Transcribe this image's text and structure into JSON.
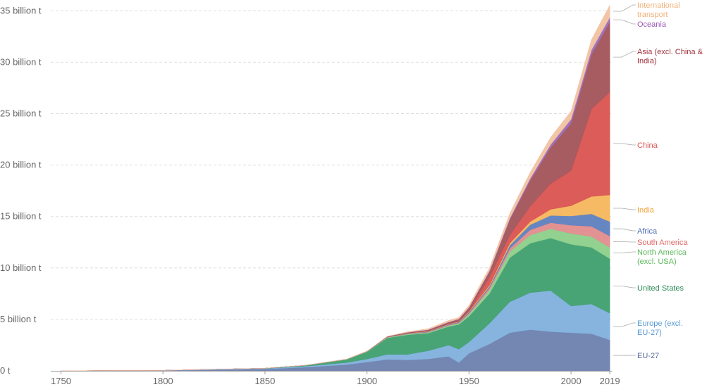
{
  "chart_data": {
    "type": "area",
    "stacked": true,
    "y_unit_suffix": " billion t",
    "x_ticks": [
      {
        "value": 1750,
        "label": "1750"
      },
      {
        "value": 1800,
        "label": "1800"
      },
      {
        "value": 1850,
        "label": "1850"
      },
      {
        "value": 1900,
        "label": "1900"
      },
      {
        "value": 1950,
        "label": "1950"
      },
      {
        "value": 2000,
        "label": "2000"
      },
      {
        "value": 2019,
        "label": "2019"
      }
    ],
    "y_ticks": [
      {
        "value": 0,
        "label": "0 t"
      },
      {
        "value": 5,
        "label": "5 billion t"
      },
      {
        "value": 10,
        "label": "10 billion t"
      },
      {
        "value": 15,
        "label": "15 billion t"
      },
      {
        "value": 20,
        "label": "20 billion t"
      },
      {
        "value": 25,
        "label": "25 billion t"
      },
      {
        "value": 30,
        "label": "30 billion t"
      },
      {
        "value": 35,
        "label": "35 billion t"
      }
    ],
    "xlim": [
      1745,
      2020
    ],
    "ylim": [
      0,
      35.5
    ],
    "grid": "horizontal dashed",
    "legend_placement": "right, labels at end of series",
    "x": [
      1750,
      1800,
      1850,
      1870,
      1890,
      1900,
      1910,
      1920,
      1930,
      1940,
      1945,
      1950,
      1960,
      1970,
      1980,
      1990,
      2000,
      2010,
      2019
    ],
    "series": [
      {
        "name": "EU-27",
        "color": "#6d7fae",
        "values": [
          0.01,
          0.03,
          0.18,
          0.35,
          0.6,
          0.85,
          1.1,
          1.05,
          1.15,
          1.4,
          0.8,
          1.7,
          2.6,
          3.7,
          4.0,
          3.8,
          3.7,
          3.6,
          3.0
        ]
      },
      {
        "name": "Europe (excl. EU-27)",
        "color": "#7fb0dc",
        "values": [
          0.0,
          0.02,
          0.05,
          0.1,
          0.2,
          0.3,
          0.5,
          0.55,
          0.8,
          1.1,
          1.3,
          1.1,
          2.0,
          3.0,
          3.6,
          4.0,
          2.6,
          2.9,
          2.6
        ]
      },
      {
        "name": "United States",
        "color": "#3f9f6e",
        "values": [
          0.0,
          0.0,
          0.02,
          0.08,
          0.3,
          0.7,
          1.6,
          1.9,
          1.7,
          1.8,
          2.4,
          2.5,
          2.9,
          4.3,
          4.8,
          5.1,
          6.0,
          5.5,
          5.3
        ]
      },
      {
        "name": "North America (excl. USA)",
        "color": "#8ccf8a",
        "values": [
          0.0,
          0.0,
          0.0,
          0.01,
          0.02,
          0.03,
          0.05,
          0.07,
          0.08,
          0.1,
          0.12,
          0.2,
          0.35,
          0.6,
          0.8,
          0.9,
          1.05,
          1.05,
          1.1
        ]
      },
      {
        "name": "South America",
        "color": "#e08c8c",
        "values": [
          0.0,
          0.0,
          0.0,
          0.0,
          0.01,
          0.01,
          0.02,
          0.03,
          0.04,
          0.05,
          0.06,
          0.1,
          0.2,
          0.3,
          0.5,
          0.6,
          0.8,
          1.0,
          1.1
        ]
      },
      {
        "name": "Africa",
        "color": "#5e7fbf",
        "values": [
          0.0,
          0.0,
          0.0,
          0.0,
          0.0,
          0.01,
          0.02,
          0.03,
          0.05,
          0.06,
          0.07,
          0.1,
          0.15,
          0.3,
          0.5,
          0.7,
          0.9,
          1.2,
          1.4
        ]
      },
      {
        "name": "India",
        "color": "#f5b65c",
        "values": [
          0.0,
          0.0,
          0.0,
          0.0,
          0.0,
          0.0,
          0.01,
          0.02,
          0.03,
          0.03,
          0.03,
          0.05,
          0.12,
          0.2,
          0.3,
          0.6,
          1.0,
          1.7,
          2.6
        ]
      },
      {
        "name": "China",
        "color": "#d9534f",
        "values": [
          0.0,
          0.0,
          0.0,
          0.0,
          0.0,
          0.0,
          0.01,
          0.02,
          0.02,
          0.03,
          0.03,
          0.08,
          0.8,
          0.8,
          1.5,
          2.5,
          3.4,
          8.5,
          10.0
        ]
      },
      {
        "name": "Asia (excl. China & India)",
        "color": "#a2535a",
        "values": [
          0.0,
          0.0,
          0.0,
          0.0,
          0.0,
          0.01,
          0.03,
          0.06,
          0.1,
          0.15,
          0.2,
          0.3,
          0.5,
          1.5,
          2.5,
          3.5,
          4.6,
          5.3,
          6.8
        ]
      },
      {
        "name": "Oceania",
        "color": "#9b6bb5",
        "values": [
          0.0,
          0.0,
          0.0,
          0.0,
          0.0,
          0.0,
          0.01,
          0.02,
          0.03,
          0.03,
          0.03,
          0.05,
          0.08,
          0.12,
          0.2,
          0.3,
          0.4,
          0.45,
          0.45
        ]
      },
      {
        "name": "International transport",
        "color": "#f2c2a2",
        "values": [
          0.0,
          0.0,
          0.0,
          0.0,
          0.0,
          0.0,
          0.0,
          0.05,
          0.1,
          0.15,
          0.15,
          0.2,
          0.3,
          0.5,
          0.6,
          0.7,
          0.8,
          1.0,
          1.2
        ]
      }
    ],
    "legend_labels": [
      {
        "series": "International transport",
        "lines": [
          "International",
          "transport"
        ]
      },
      {
        "series": "Oceania",
        "lines": [
          "Oceania"
        ]
      },
      {
        "series": "Asia (excl. China & India)",
        "lines": [
          "Asia (excl. China &",
          "India)"
        ]
      },
      {
        "series": "China",
        "lines": [
          "China"
        ]
      },
      {
        "series": "India",
        "lines": [
          "India"
        ]
      },
      {
        "series": "Africa",
        "lines": [
          "Africa"
        ]
      },
      {
        "series": "South America",
        "lines": [
          "South America"
        ]
      },
      {
        "series": "North America (excl. USA)",
        "lines": [
          "North America",
          "(excl. USA)"
        ]
      },
      {
        "series": "United States",
        "lines": [
          "United States"
        ]
      },
      {
        "series": "Europe (excl. EU-27)",
        "lines": [
          "Europe (excl.",
          "EU-27)"
        ]
      },
      {
        "series": "EU-27",
        "lines": [
          "EU-27"
        ]
      }
    ],
    "legend_text_colors": {
      "International transport": "#f0b27a",
      "Oceania": "#9b59b6",
      "Asia (excl. China & India)": "#a0343e",
      "China": "#d9534f",
      "India": "#f0a53a",
      "Africa": "#4f6fb5",
      "South America": "#e06666",
      "North America (excl. USA)": "#5cb85c",
      "United States": "#2e8b57",
      "Europe (excl. EU-27)": "#5a9bd4",
      "EU-27": "#5b6c9f"
    }
  }
}
